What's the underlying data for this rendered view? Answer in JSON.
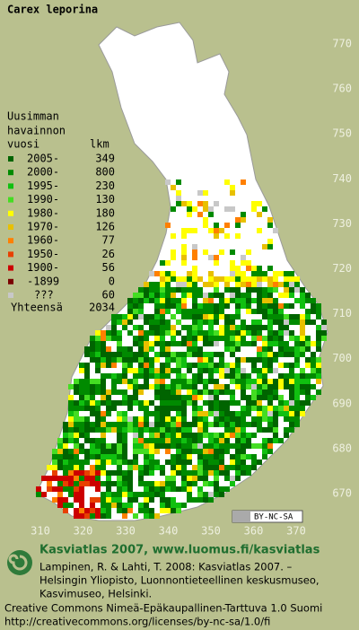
{
  "map": {
    "title": "Carex leporina",
    "legend": {
      "heading": [
        "Uusimman",
        "havainnon"
      ],
      "col_year": "vuosi",
      "col_count": "lkm",
      "rows": [
        {
          "label": "2005-",
          "count": 349,
          "color": "#006400"
        },
        {
          "label": "2000-",
          "count": 800,
          "color": "#008a00"
        },
        {
          "label": "1995-",
          "count": 230,
          "color": "#10c010"
        },
        {
          "label": "1990-",
          "count": 130,
          "color": "#44dd22"
        },
        {
          "label": "1980-",
          "count": 180,
          "color": "#ffff00"
        },
        {
          "label": "1970-",
          "count": 126,
          "color": "#e8c000"
        },
        {
          "label": "1960-",
          "count": 77,
          "color": "#ff8000"
        },
        {
          "label": "1950-",
          "count": 26,
          "color": "#e84000"
        },
        {
          "label": "1900-",
          "count": 56,
          "color": "#cc0000"
        },
        {
          "label": "-1899",
          "count": 0,
          "color": "#7a0000"
        },
        {
          "label": "???",
          "count": 60,
          "color": "#c8c8c8"
        }
      ],
      "total_label": "Yhteensä",
      "total": 2034
    },
    "y_labels": [
      770,
      760,
      750,
      740,
      730,
      720,
      710,
      700,
      690,
      680,
      670
    ],
    "x_labels": [
      310,
      320,
      330,
      340,
      350,
      360,
      370
    ],
    "license_badge": "BY-NC-SA",
    "footer": {
      "site": "Kasviatlas 2007, www.luomus.fi/kasviatlas",
      "citation": [
        "Lampinen, R. & Lahti, T. 2008: Kasviatlas 2007. –",
        "Helsingin Yliopisto, Luonnontieteellinen keskusmuseo,",
        "Kasvimuseo, Helsinki."
      ],
      "license": [
        "Creative Commons Nimeä-Epäkaupallinen-Tarttuva 1.0 Suomi",
        "http://creativecommons.org/licenses/by-nc-sa/1.0/fi"
      ]
    }
  }
}
